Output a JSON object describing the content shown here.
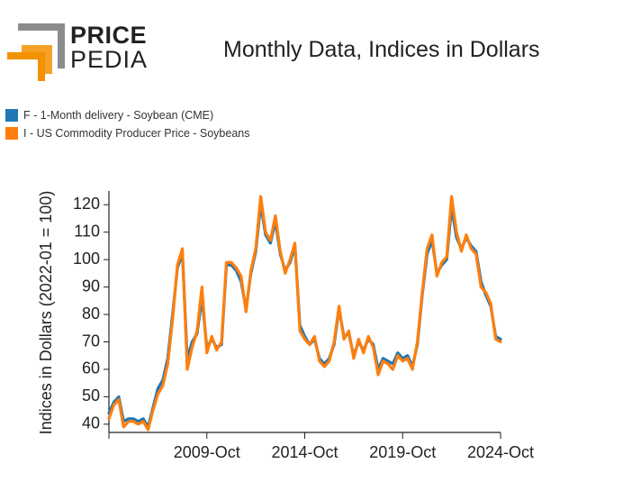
{
  "brand": {
    "word1": "PRICE",
    "word2": "PEDIA",
    "color_orange": "#F29200",
    "color_grey": "#8C8C8C"
  },
  "chart_data": {
    "type": "line",
    "title": "Monthly Data, Indices in Dollars",
    "xlabel": "",
    "ylabel": "Indices in Dollars (2022-01 = 100)",
    "ylim": [
      37,
      125
    ],
    "yticks": [
      40,
      50,
      60,
      70,
      80,
      90,
      100,
      110,
      120
    ],
    "xticks": [
      "2009-Oct",
      "2014-Oct",
      "2019-Oct",
      "2024-Oct"
    ],
    "legend_position": "top-left",
    "series": [
      {
        "name": "F - 1-Month delivery - Soybean (CME)",
        "color": "#1F77B4",
        "x": [
          "2004-10",
          "2005-01",
          "2005-04",
          "2005-07",
          "2005-10",
          "2006-01",
          "2006-04",
          "2006-07",
          "2006-10",
          "2007-01",
          "2007-04",
          "2007-07",
          "2007-10",
          "2008-01",
          "2008-04",
          "2008-07",
          "2008-10",
          "2009-01",
          "2009-04",
          "2009-07",
          "2009-10",
          "2010-01",
          "2010-04",
          "2010-07",
          "2010-10",
          "2011-01",
          "2011-04",
          "2011-07",
          "2011-10",
          "2012-01",
          "2012-04",
          "2012-07",
          "2012-10",
          "2013-01",
          "2013-04",
          "2013-07",
          "2013-10",
          "2014-01",
          "2014-04",
          "2014-07",
          "2014-10",
          "2015-01",
          "2015-04",
          "2015-07",
          "2015-10",
          "2016-01",
          "2016-04",
          "2016-07",
          "2016-10",
          "2017-01",
          "2017-04",
          "2017-07",
          "2017-10",
          "2018-01",
          "2018-04",
          "2018-07",
          "2018-10",
          "2019-01",
          "2019-04",
          "2019-07",
          "2019-10",
          "2020-01",
          "2020-04",
          "2020-07",
          "2020-10",
          "2021-01",
          "2021-04",
          "2021-07",
          "2021-10",
          "2022-01",
          "2022-04",
          "2022-07",
          "2022-10",
          "2023-01",
          "2023-04",
          "2023-07",
          "2023-10",
          "2024-01",
          "2024-04",
          "2024-07",
          "2024-10"
        ],
        "values": [
          44,
          48,
          50,
          41,
          42,
          42,
          41,
          42,
          39,
          46,
          53,
          56,
          64,
          80,
          97,
          102,
          64,
          70,
          73,
          86,
          68,
          71,
          68,
          69,
          98,
          98,
          96,
          92,
          82,
          95,
          103,
          120,
          109,
          106,
          114,
          102,
          96,
          99,
          105,
          76,
          72,
          69,
          71,
          64,
          62,
          64,
          69,
          82,
          72,
          73,
          65,
          70,
          67,
          71,
          69,
          60,
          64,
          63,
          62,
          66,
          64,
          65,
          61,
          69,
          87,
          102,
          107,
          95,
          98,
          100,
          119,
          108,
          104,
          108,
          105,
          103,
          92,
          87,
          83,
          72,
          71
        ],
        "points_shown": false
      },
      {
        "name": "I - US Commodity Producer Price - Soybeans",
        "color": "#FF7F0E",
        "x": [
          "2004-10",
          "2005-01",
          "2005-04",
          "2005-07",
          "2005-10",
          "2006-01",
          "2006-04",
          "2006-07",
          "2006-10",
          "2007-01",
          "2007-04",
          "2007-07",
          "2007-10",
          "2008-01",
          "2008-04",
          "2008-07",
          "2008-10",
          "2009-01",
          "2009-04",
          "2009-07",
          "2009-10",
          "2010-01",
          "2010-04",
          "2010-07",
          "2010-10",
          "2011-01",
          "2011-04",
          "2011-07",
          "2011-10",
          "2012-01",
          "2012-04",
          "2012-07",
          "2012-10",
          "2013-01",
          "2013-04",
          "2013-07",
          "2013-10",
          "2014-01",
          "2014-04",
          "2014-07",
          "2014-10",
          "2015-01",
          "2015-04",
          "2015-07",
          "2015-10",
          "2016-01",
          "2016-04",
          "2016-07",
          "2016-10",
          "2017-01",
          "2017-04",
          "2017-07",
          "2017-10",
          "2018-01",
          "2018-04",
          "2018-07",
          "2018-10",
          "2019-01",
          "2019-04",
          "2019-07",
          "2019-10",
          "2020-01",
          "2020-04",
          "2020-07",
          "2020-10",
          "2021-01",
          "2021-04",
          "2021-07",
          "2021-10",
          "2022-01",
          "2022-04",
          "2022-07",
          "2022-10",
          "2023-01",
          "2023-04",
          "2023-07",
          "2023-10",
          "2024-01",
          "2024-04",
          "2024-07",
          "2024-10"
        ],
        "values": [
          42,
          47,
          49,
          39,
          41,
          41,
          40,
          41,
          38,
          45,
          51,
          54,
          62,
          78,
          98,
          104,
          60,
          68,
          74,
          90,
          66,
          72,
          67,
          70,
          99,
          99,
          97,
          94,
          81,
          96,
          104,
          123,
          110,
          107,
          116,
          103,
          95,
          100,
          106,
          74,
          71,
          69,
          72,
          63,
          61,
          63,
          70,
          83,
          71,
          74,
          64,
          71,
          66,
          72,
          68,
          58,
          63,
          62,
          60,
          65,
          63,
          64,
          60,
          70,
          88,
          104,
          109,
          94,
          99,
          101,
          123,
          110,
          103,
          109,
          104,
          102,
          90,
          88,
          84,
          71,
          70
        ],
        "points_shown": false
      }
    ]
  }
}
